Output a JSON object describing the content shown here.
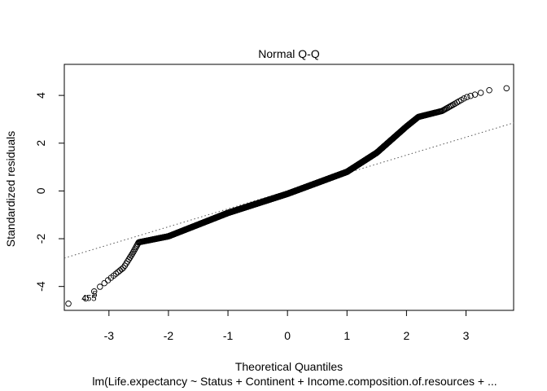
{
  "chart_data": {
    "type": "scatter",
    "title": "Normal Q-Q",
    "xlabel": "Theoretical Quantiles",
    "ylabel": "Standardized residuals",
    "subtitle": "lm(Life.expectancy ~ Status + Continent + Income.composition.of.resources + ...",
    "xlim": [
      -3.75,
      3.8
    ],
    "ylim": [
      -5.0,
      5.3
    ],
    "x_ticks": [
      -3,
      -2,
      -1,
      0,
      1,
      2,
      3
    ],
    "y_ticks": [
      -4,
      -2,
      0,
      2,
      4
    ],
    "grid": false,
    "reference_line": {
      "intercept": 0.0,
      "slope": 0.75
    },
    "point_labels": [
      "455",
      "5"
    ],
    "key_points": {
      "x": [
        -3.5,
        -2.75,
        -2.6,
        -2.5,
        -2.0,
        -1.0,
        0.0,
        1.0,
        1.5,
        2.0,
        2.2,
        2.6,
        3.0,
        3.5
      ],
      "y": [
        -4.72,
        -3.2,
        -2.6,
        -2.15,
        -1.9,
        -0.92,
        -0.12,
        0.8,
        1.6,
        2.7,
        3.1,
        3.35,
        3.92,
        4.3
      ]
    }
  }
}
